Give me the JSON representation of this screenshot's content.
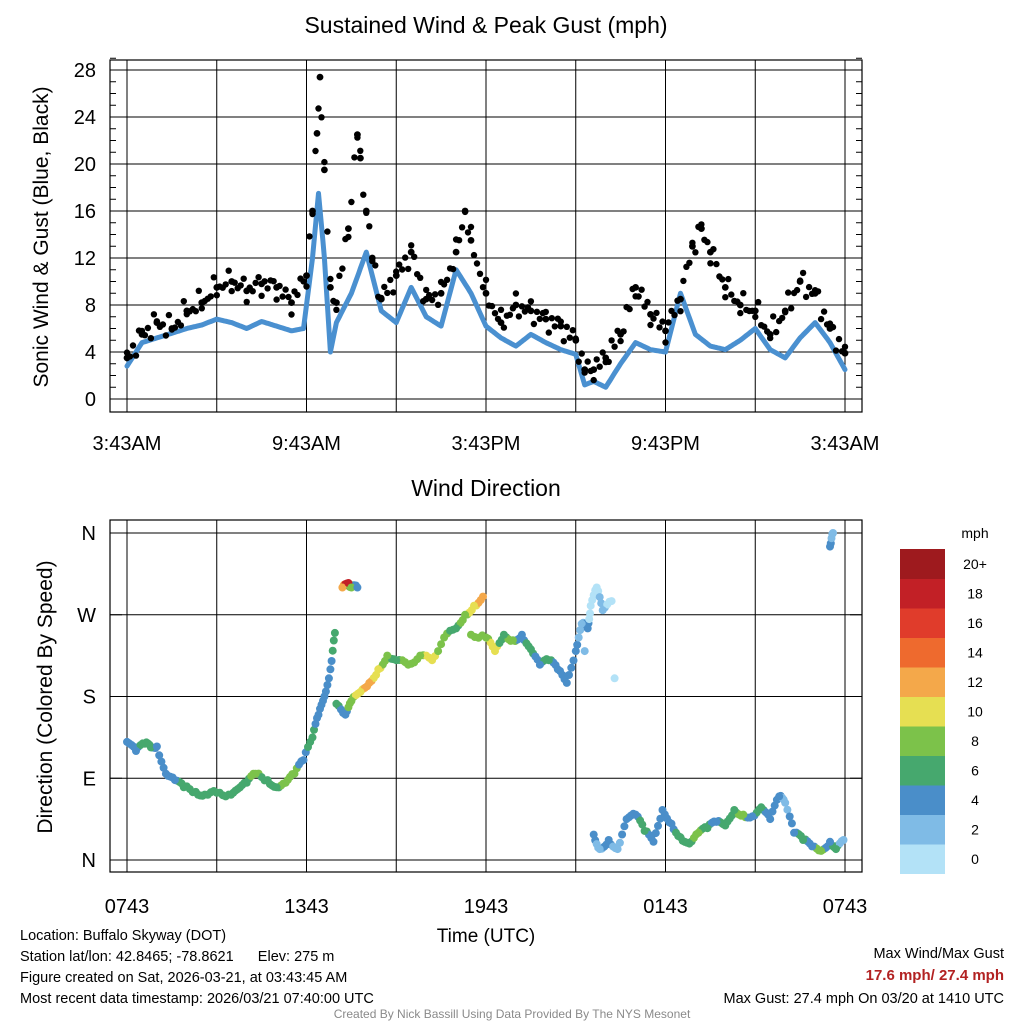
{
  "chart_data": [
    {
      "type": "scatter",
      "title": "Sustained Wind & Peak Gust (mph)",
      "ylabel": "Sonic Wind & Gust (Blue, Black)",
      "xlabel": "",
      "ylim": [
        0,
        29
      ],
      "yticks": [
        0,
        4,
        8,
        12,
        16,
        20,
        24,
        28
      ],
      "ytick_labels": [
        "0",
        "4",
        "8",
        "12",
        "16",
        "20",
        "24",
        "28"
      ],
      "x_unit": "hours since 3:43AM",
      "xlim": [
        0,
        24
      ],
      "xticks": [
        0,
        6,
        12,
        18,
        24
      ],
      "xtick_labels": [
        "3:43AM",
        "9:43AM",
        "3:43PM",
        "9:43PM",
        "3:43AM"
      ],
      "grid": true,
      "series": [
        {
          "name": "Sustained Wind",
          "color": "#4a90d0",
          "x": [
            0,
            0.5,
            1,
            1.5,
            2,
            2.5,
            3,
            3.5,
            4,
            4.5,
            5,
            5.5,
            5.9,
            6.2,
            6.4,
            6.6,
            6.8,
            7,
            7.5,
            8,
            8.5,
            9,
            9.5,
            10,
            10.5,
            11,
            11.5,
            12,
            12.5,
            13,
            13.5,
            14,
            14.5,
            15,
            15.3,
            15.6,
            16,
            16.5,
            17,
            17.5,
            18,
            18.5,
            19,
            19.5,
            20,
            20.5,
            21,
            21.5,
            22,
            22.5,
            23,
            23.5,
            24
          ],
          "y": [
            2.8,
            4.8,
            5.2,
            5.6,
            6,
            6.3,
            6.8,
            6.5,
            6,
            6.6,
            6.2,
            5.8,
            6,
            12,
            17.5,
            12,
            4,
            6.5,
            9,
            12.5,
            7.5,
            6.5,
            9.5,
            7,
            6.2,
            11,
            9,
            6.2,
            5.2,
            4.5,
            5.5,
            4.8,
            4.2,
            3.8,
            1.2,
            1.5,
            1,
            3,
            4.8,
            4.2,
            4,
            9,
            5.5,
            4.5,
            4.2,
            5,
            6,
            4.2,
            3.5,
            5.2,
            6.5,
            4.8,
            2.5
          ]
        },
        {
          "name": "Peak Gust",
          "color": "#000000",
          "x": [
            0,
            0.5,
            1,
            1.5,
            2,
            2.5,
            3,
            3.5,
            4,
            4.5,
            5,
            5.5,
            6,
            6.2,
            6.35,
            6.45,
            6.6,
            6.8,
            7,
            7.4,
            7.7,
            7.8,
            8,
            8.2,
            8.5,
            9,
            9.5,
            10,
            10.5,
            11,
            11.3,
            11.5,
            12,
            12.5,
            13,
            13.5,
            14,
            14.5,
            15,
            15.3,
            15.6,
            16,
            16.5,
            17,
            17.5,
            18,
            18.5,
            18.9,
            19.2,
            19.5,
            20,
            20.5,
            21,
            21.5,
            22,
            22.5,
            23,
            23.5,
            24
          ],
          "y": [
            3.5,
            5.5,
            6.5,
            6,
            7.5,
            8.2,
            9.5,
            10,
            9.2,
            9.8,
            9.5,
            8.2,
            10.5,
            16,
            22.6,
            27.4,
            19.5,
            9.5,
            8.2,
            14.5,
            22.5,
            20.5,
            16,
            12,
            8.5,
            10.5,
            12.5,
            8.5,
            9,
            12.5,
            16,
            13.5,
            9,
            6.5,
            8,
            7.5,
            6.8,
            6.2,
            5,
            2.5,
            2.5,
            3.5,
            5.5,
            9.5,
            7.2,
            5.8,
            8.5,
            13,
            14.5,
            12.5,
            9.5,
            8,
            7.5,
            5.5,
            7.5,
            10,
            9,
            6,
            3.9
          ]
        }
      ]
    },
    {
      "type": "scatter",
      "title": "Wind Direction",
      "ylabel": "Direction (Colored By Speed)",
      "xlabel": "Time (UTC)",
      "x_unit": "hours since 0743 UTC",
      "xlim": [
        0,
        24
      ],
      "xticks": [
        0,
        6,
        12,
        18,
        24
      ],
      "xtick_labels": [
        "0743",
        "1343",
        "1943",
        "0143",
        "0743"
      ],
      "ylim": [
        0,
        360
      ],
      "yticks": [
        0,
        90,
        180,
        270,
        360
      ],
      "ytick_labels": [
        "N",
        "E",
        "S",
        "W",
        "N"
      ],
      "grid": true,
      "colorbar": {
        "title": "mph",
        "labels": [
          "0",
          "2",
          "4",
          "6",
          "8",
          "10",
          "12",
          "14",
          "16",
          "18",
          "20+"
        ],
        "colors": [
          "#b3e2f7",
          "#7fbbe6",
          "#4a8ec9",
          "#46a86e",
          "#7cc24a",
          "#e6df52",
          "#f4a84a",
          "#ee6a2e",
          "#e03c2b",
          "#c22026",
          "#9e1a1e"
        ]
      },
      "points": [
        [
          0.0,
          130,
          4
        ],
        [
          0.3,
          120,
          4
        ],
        [
          0.6,
          128,
          6
        ],
        [
          0.8,
          124,
          6
        ],
        [
          1.0,
          125,
          4
        ],
        [
          1.3,
          95,
          4
        ],
        [
          1.6,
          88,
          4
        ],
        [
          1.9,
          80,
          6
        ],
        [
          2.3,
          75,
          6
        ],
        [
          2.6,
          72,
          6
        ],
        [
          3.0,
          74,
          6
        ],
        [
          3.4,
          72,
          6
        ],
        [
          3.7,
          78,
          6
        ],
        [
          4.0,
          85,
          6
        ],
        [
          4.3,
          95,
          8
        ],
        [
          4.7,
          88,
          6
        ],
        [
          5.0,
          80,
          6
        ],
        [
          5.3,
          85,
          8
        ],
        [
          5.6,
          95,
          8
        ],
        [
          5.9,
          110,
          4
        ],
        [
          6.2,
          135,
          6
        ],
        [
          6.4,
          160,
          4
        ],
        [
          6.6,
          180,
          4
        ],
        [
          6.8,
          210,
          4
        ],
        [
          6.95,
          250,
          6
        ],
        [
          7.2,
          300,
          12
        ],
        [
          7.4,
          305,
          18
        ],
        [
          7.5,
          300,
          8
        ],
        [
          7.7,
          300,
          4
        ],
        [
          7.0,
          172,
          6
        ],
        [
          7.3,
          160,
          4
        ],
        [
          7.5,
          175,
          8
        ],
        [
          7.8,
          185,
          10
        ],
        [
          8.1,
          195,
          12
        ],
        [
          8.4,
          210,
          10
        ],
        [
          8.7,
          225,
          8
        ],
        [
          9.0,
          220,
          6
        ],
        [
          9.4,
          215,
          8
        ],
        [
          9.8,
          225,
          8
        ],
        [
          10.2,
          220,
          10
        ],
        [
          10.6,
          245,
          8
        ],
        [
          11.0,
          255,
          6
        ],
        [
          11.3,
          270,
          8
        ],
        [
          11.6,
          280,
          10
        ],
        [
          11.9,
          290,
          12
        ],
        [
          11.5,
          248,
          8
        ],
        [
          12.0,
          245,
          8
        ],
        [
          12.3,
          230,
          10
        ],
        [
          12.6,
          248,
          6
        ],
        [
          12.9,
          242,
          8
        ],
        [
          13.2,
          248,
          4
        ],
        [
          13.5,
          232,
          6
        ],
        [
          13.8,
          215,
          4
        ],
        [
          14.1,
          220,
          6
        ],
        [
          14.4,
          210,
          4
        ],
        [
          14.7,
          195,
          4
        ],
        [
          15.0,
          230,
          4
        ],
        [
          15.2,
          260,
          2
        ],
        [
          15.4,
          255,
          4
        ],
        [
          15.5,
          280,
          0
        ],
        [
          15.7,
          300,
          0
        ],
        [
          15.9,
          275,
          2
        ],
        [
          16.2,
          285,
          0
        ],
        [
          16.3,
          200,
          0
        ],
        [
          15.3,
          230,
          2
        ],
        [
          15.6,
          28,
          4
        ],
        [
          15.8,
          12,
          2
        ],
        [
          16.1,
          22,
          4
        ],
        [
          16.4,
          12,
          2
        ],
        [
          16.7,
          45,
          4
        ],
        [
          17.0,
          50,
          4
        ],
        [
          17.3,
          32,
          6
        ],
        [
          17.6,
          20,
          4
        ],
        [
          17.9,
          55,
          4
        ],
        [
          18.2,
          40,
          4
        ],
        [
          18.5,
          25,
          6
        ],
        [
          18.8,
          18,
          6
        ],
        [
          19.1,
          30,
          8
        ],
        [
          19.4,
          35,
          6
        ],
        [
          19.7,
          42,
          4
        ],
        [
          20.0,
          38,
          6
        ],
        [
          20.3,
          55,
          6
        ],
        [
          20.6,
          50,
          8
        ],
        [
          20.9,
          48,
          4
        ],
        [
          21.2,
          58,
          6
        ],
        [
          21.5,
          45,
          4
        ],
        [
          21.8,
          70,
          4
        ],
        [
          22.0,
          63,
          2
        ],
        [
          22.3,
          30,
          4
        ],
        [
          22.6,
          22,
          6
        ],
        [
          22.9,
          15,
          4
        ],
        [
          23.2,
          10,
          8
        ],
        [
          23.5,
          20,
          4
        ],
        [
          23.7,
          12,
          6
        ],
        [
          23.95,
          22,
          2
        ],
        [
          23.5,
          345,
          4
        ],
        [
          23.6,
          360,
          2
        ]
      ]
    }
  ],
  "footer": {
    "location": "Location: Buffalo Skyway (DOT)",
    "station": "Station lat/lon: 42.8465; -78.8621      Elev: 275 m",
    "created": "Figure created on Sat, 2026-03-21, at 03:43:45 AM",
    "recent": "Most recent data timestamp: 2026/03/21 07:40:00 UTC",
    "maxlabel": "Max Wind/Max Gust",
    "maxvalues": "17.6 mph/ 27.4 mph",
    "maxgust": "Max Gust: 27.4 mph On 03/20 at 1410 UTC",
    "credit": "Created By Nick Bassill Using Data Provided By The NYS Mesonet"
  }
}
